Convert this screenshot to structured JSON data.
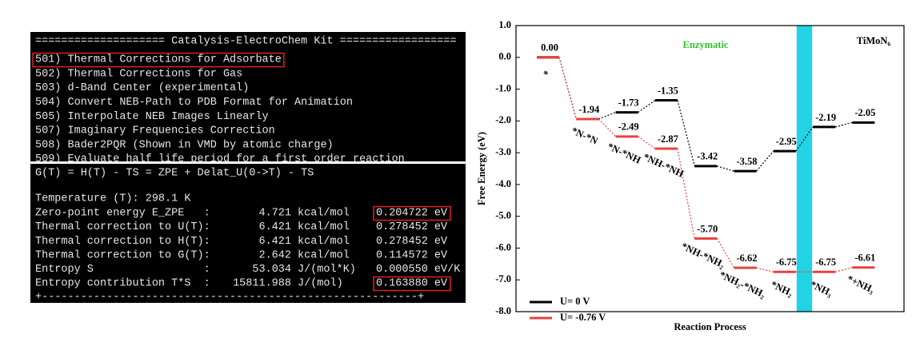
{
  "terminal": {
    "header": "==================== Catalysis-ElectroChem Kit ==================",
    "menu": [
      "501) Thermal Corrections for Adsorbate",
      "502) Thermal Corrections for Gas",
      "503) d-Band Center (experimental)",
      "504) Convert NEB-Path to PDB Format for Animation",
      "505) Interpolate NEB Images Linearly",
      "507) Imaginary Frequencies Correction",
      "508) Bader2PQR (Shown in VMD by atomic charge)",
      "509) Evaluate half life period for a first order reaction"
    ],
    "formula": "G(T) = H(T) - TS = ZPE + Delat_U(0->T) - TS",
    "temperature": "Temperature (T): 298.1 K",
    "rows": [
      [
        "Zero-point energy E_ZPE   :",
        "4.721",
        "kcal/mol",
        "0.204722 eV"
      ],
      [
        "Thermal correction to U(T):",
        "6.421",
        "kcal/mol",
        "0.278452 eV"
      ],
      [
        "Thermal correction to H(T):",
        "6.421",
        "kcal/mol",
        "0.278452 eV"
      ],
      [
        "Thermal correction to G(T):",
        "2.642",
        "kcal/mol",
        "0.114572 eV"
      ],
      [
        "Entropy S                 :",
        "53.034",
        "J/(mol*K)",
        "0.000550 eV/K"
      ],
      [
        "Entropy contribution T*S  :",
        "15811.988",
        "J/(mol)",
        "0.163880 eV"
      ]
    ],
    "footer": "+----------------------------------------------------------+"
  },
  "chart_data": {
    "type": "energy-levels",
    "title": "TiMoN₆",
    "annotation": "Enzymatic",
    "x_label": "Reaction Process",
    "y_label": "Free Energy (eV)",
    "categories": [
      "*",
      "*N-*N",
      "*N-*NH",
      "*NH-*NH",
      "*NH-*NH₂",
      "*NH₂-*NH₂",
      "*NH₂",
      "*NH₃",
      "*+NH₃"
    ],
    "series": [
      {
        "name": "U= 0 V",
        "color": "#000000",
        "values": [
          0.0,
          -1.94,
          -1.73,
          -1.35,
          -3.42,
          -3.58,
          -2.95,
          -2.19,
          -2.05
        ],
        "value_labels": [
          "0.00",
          "-1.94",
          "-1.73",
          "-1.35",
          "-3.42",
          "-3.58",
          "-2.95",
          "-2.19",
          "-2.05"
        ]
      },
      {
        "name": "U= -0.76 V",
        "color": "#e8423f",
        "values": [
          0.0,
          -1.94,
          -2.49,
          -2.87,
          -5.7,
          -6.62,
          -6.75,
          -6.75,
          -6.61
        ],
        "value_labels": [
          "0.00",
          "-1.94",
          "-2.49",
          "-2.87",
          "-5.70",
          "-6.62",
          "-6.75",
          "-6.75",
          "-6.61"
        ]
      }
    ],
    "ylim": [
      -8,
      1
    ],
    "yticks": [
      {
        "value": 1,
        "label": "1.0"
      },
      {
        "value": 0,
        "label": "0.0"
      },
      {
        "value": -1,
        "label": "-1.0"
      },
      {
        "value": -2,
        "label": "-2.0"
      },
      {
        "value": -3,
        "label": "-3.0"
      },
      {
        "value": -4,
        "label": "-4.0"
      },
      {
        "value": -5,
        "label": "-5.0"
      },
      {
        "value": -6,
        "label": "-6.0"
      },
      {
        "value": -7,
        "label": "-7.0"
      },
      {
        "value": -8,
        "label": "-8.0"
      }
    ],
    "legend": "lower left"
  }
}
